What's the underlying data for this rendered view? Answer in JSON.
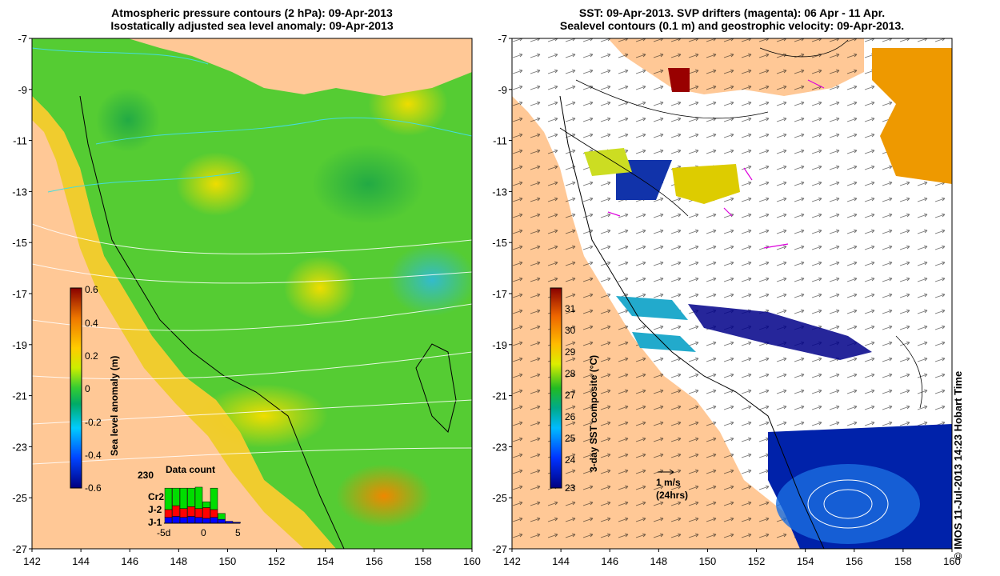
{
  "left_panel": {
    "title_line1": "Atmospheric pressure contours (2 hPa): 09-Apr-2013",
    "title_line2": "Isostatically adjusted sea level anomaly: 09-Apr-2013",
    "colorbar_label": "Sea level anomaly (m)",
    "colorbar_ticks": [
      "0.6",
      "0.4",
      "0.2",
      "0",
      "-0.2",
      "-0.4",
      "-0.6"
    ],
    "data_count": {
      "title": "Data count",
      "max_label": "230",
      "legend": [
        "Cr2",
        "J-2",
        "J-1"
      ],
      "x_ticks": [
        "-5d",
        "0",
        "5"
      ],
      "colors": {
        "Cr2": "#00dd00",
        "J-2": "#ff0000",
        "J-1": "#0000ff"
      },
      "bars": [
        {
          "J-1": 30,
          "J-2": 40,
          "Cr2": 110
        },
        {
          "J-1": 35,
          "J-2": 55,
          "Cr2": 90
        },
        {
          "J-1": 30,
          "J-2": 45,
          "Cr2": 105
        },
        {
          "J-1": 35,
          "J-2": 50,
          "Cr2": 95
        },
        {
          "J-1": 30,
          "J-2": 45,
          "Cr2": 110
        },
        {
          "J-1": 25,
          "J-2": 55,
          "Cr2": 30
        },
        {
          "J-1": 30,
          "J-2": 40,
          "Cr2": 110
        },
        {
          "J-1": 20,
          "J-2": 0,
          "Cr2": 30
        },
        {
          "J-1": 10,
          "J-2": 0,
          "Cr2": 0
        },
        {
          "J-1": 5,
          "J-2": 0,
          "Cr2": 0
        }
      ]
    }
  },
  "right_panel": {
    "title_line1": "SST: 09-Apr-2013. SVP drifters (magenta): 06 Apr - 11 Apr.",
    "title_line2": "Sealevel contours (0.1 m) and geostrophic velocity: 09-Apr-2013.",
    "colorbar_label": "3-day SST composite (°C)",
    "colorbar_ticks": [
      "31",
      "30",
      "29",
      "28",
      "27",
      "26",
      "25",
      "24",
      "23"
    ],
    "scale_arrow_label": "1 m/s",
    "scale_arrow_sublabel": "(24hrs)"
  },
  "axes": {
    "lat_ticks": [
      "-7",
      "-9",
      "-11",
      "-13",
      "-15",
      "-17",
      "-19",
      "-21",
      "-23",
      "-25",
      "-27"
    ],
    "lon_ticks": [
      "142",
      "144",
      "146",
      "148",
      "150",
      "152",
      "154",
      "156",
      "158",
      "160"
    ]
  },
  "credit": "© IMOS 11-Jul-2013 14:23 Hobart Time",
  "colors": {
    "land": "#ffc896",
    "sea_anomaly_base": "#44cc33",
    "sst_blank": "#ffffff"
  }
}
